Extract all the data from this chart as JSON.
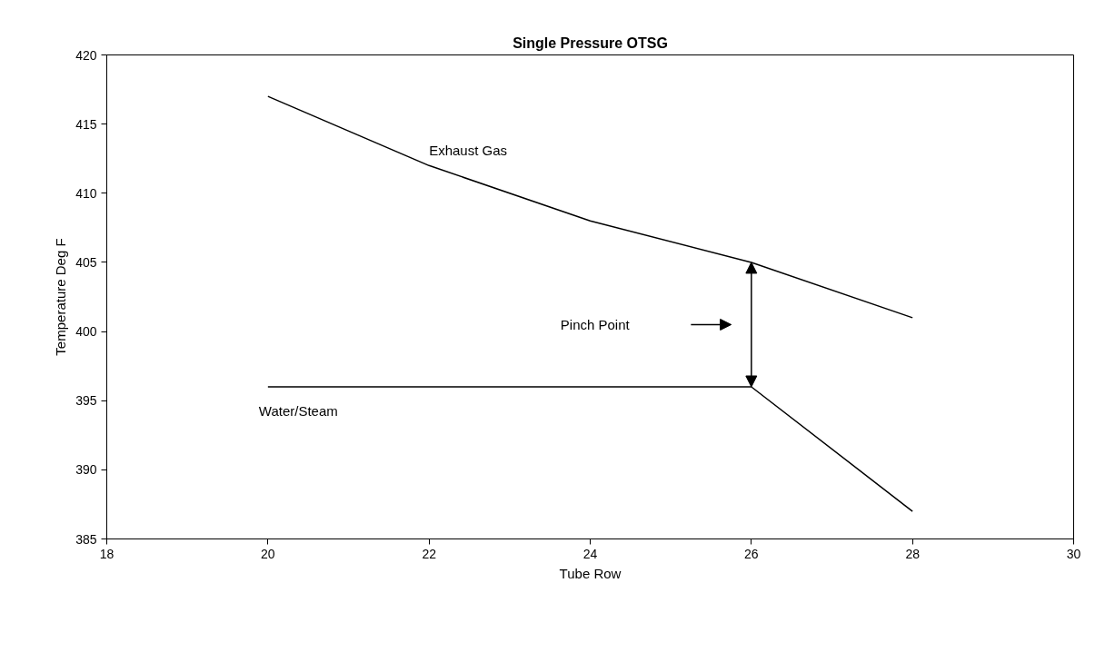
{
  "chart_data": {
    "type": "line",
    "title": "Single Pressure OTSG",
    "xlabel": "Tube Row",
    "ylabel": "Temperature Deg F",
    "x": [
      20,
      22,
      24,
      26,
      28
    ],
    "series": [
      {
        "name": "Exhaust Gas",
        "color": "#000000",
        "values": [
          417,
          412,
          408,
          405,
          401
        ]
      },
      {
        "name": "Water/Steam",
        "color": "#000000",
        "values": [
          396,
          396,
          396,
          396,
          387
        ]
      }
    ],
    "annotations": [
      "Pinch Point"
    ],
    "xlim": [
      18,
      30
    ],
    "xticks": [
      18,
      20,
      22,
      24,
      26,
      28,
      30
    ],
    "ylim": [
      385,
      420
    ],
    "yticks": [
      385,
      390,
      395,
      400,
      405,
      410,
      415,
      420
    ],
    "grid": false,
    "marker": "none",
    "line_style": "solid"
  }
}
